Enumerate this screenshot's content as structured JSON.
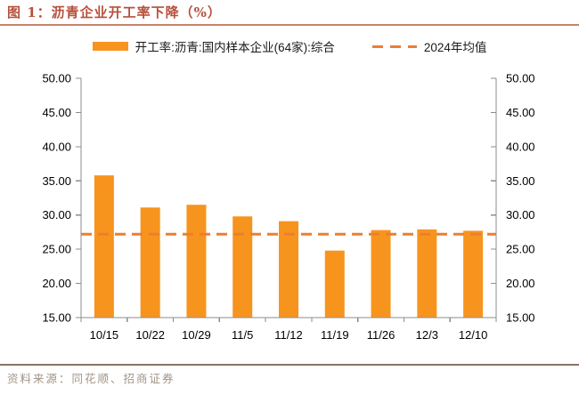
{
  "figure": {
    "title": "图 1：沥青企业开工率下降（%）",
    "source": "资料来源：同花顺、招商证券"
  },
  "legend": {
    "series_label": "开工率:沥青:国内样本企业(64家):综合",
    "mean_label": "2024年均值"
  },
  "colors": {
    "bar": "#F7941E",
    "mean_line": "#ED7D31",
    "axis": "#8C8C8C",
    "tick_text": "#000000",
    "title": "#B7503B",
    "title_rule": "#C8836C",
    "footer_rule": "#8A7164",
    "source_text": "#A29486"
  },
  "chart_data": {
    "type": "bar",
    "title": "沥青企业开工率（%）",
    "categories": [
      "10/15",
      "10/22",
      "10/29",
      "11/5",
      "11/12",
      "11/19",
      "11/26",
      "12/3",
      "12/10"
    ],
    "series": [
      {
        "name": "开工率:沥青:国内样本企业(64家):综合",
        "type": "bar",
        "values": [
          35.8,
          31.1,
          31.5,
          29.8,
          29.1,
          24.8,
          27.8,
          27.9,
          27.7
        ]
      },
      {
        "name": "2024年均值",
        "type": "dashed-line",
        "value": 27.2
      }
    ],
    "xlabel": "",
    "ylabel": "",
    "ylim": [
      15,
      50
    ],
    "ytick_step": 5,
    "ytick_labels": [
      "15.00",
      "20.00",
      "25.00",
      "30.00",
      "35.00",
      "40.00",
      "45.00",
      "50.00"
    ],
    "dual_y_axis": true,
    "grid": false,
    "legend_position": "top"
  }
}
